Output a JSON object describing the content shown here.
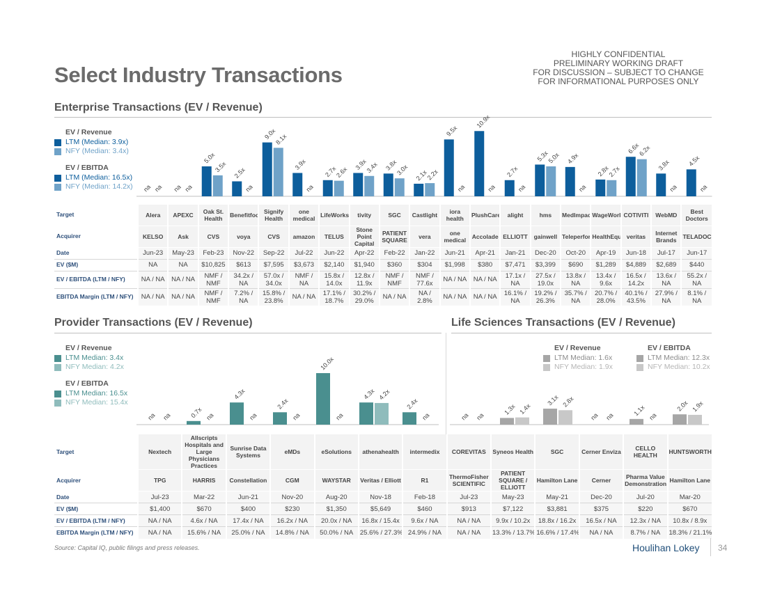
{
  "page": {
    "title": "Select Industry Transactions",
    "confidential": [
      "HIGHLY CONFIDENTIAL",
      "PRELIMINARY WORKING DRAFT",
      "FOR DISCUSSION – SUBJECT TO CHANGE",
      "FOR INFORMATIONAL PURPOSES ONLY"
    ],
    "source": "Source: Capital IQ, public filings and press releases.",
    "brand": "Houlihan Lokey",
    "page_number": "34"
  },
  "colors": {
    "ltm": "#0d5e9c",
    "nfy": "#6fa2c8",
    "prov_ltm": "#4a8f8f",
    "prov_nfy": "#8fbcbc",
    "ls": "#a6a6a6",
    "ls_nfy": "#c8c8c8"
  },
  "row_labels": {
    "target": "Target",
    "acquirer": "Acquirer",
    "date": "Date",
    "ev": "EV ($M)",
    "ev_ebitda": "EV / EBITDA (LTM / NFY)",
    "margin": "EBITDA Margin (LTM / NFY)"
  },
  "enterprise": {
    "title": "Enterprise Transactions (EV / Revenue)",
    "legend": {
      "rev_head": "EV / Revenue",
      "rev_ltm": "LTM (Median: 3.9x)",
      "rev_nfy": "NFY (Median: 3.4x)",
      "ebitda_head": "EV / EBITDA",
      "ebitda_ltm": "LTM (Median: 16.5x)",
      "ebitda_nfy": "NFY (Median: 14.2x)"
    },
    "targets": [
      "Alera",
      "APEXC",
      "Oak St. Health",
      "Benefitfocus",
      "Signify Health",
      "one medical",
      "LifeWorks",
      "tivity",
      "SGC",
      "Castlight",
      "iora health",
      "PlushCare",
      "alight",
      "hms",
      "MedImpact",
      "WageWorks",
      "COTIVITI",
      "WebMD",
      "Best Doctors"
    ],
    "acquirers": [
      "KELSO",
      "Ask",
      "CVS",
      "voya",
      "CVS",
      "amazon",
      "TELUS",
      "Stone Point Capital",
      "PATIENT SQUARE",
      "vera",
      "one medical",
      "Accolade",
      "ELLIOTT",
      "gainwell",
      "Teleperformance",
      "HealthEquity",
      "veritas",
      "Internet Brands",
      "TELADOC"
    ],
    "dates": [
      "Jun-23",
      "May-23",
      "Feb-23",
      "Nov-22",
      "Sep-22",
      "Jul-22",
      "Jun-22",
      "Apr-22",
      "Feb-22",
      "Jan-22",
      "Jun-21",
      "Apr-21",
      "Jan-21",
      "Dec-20",
      "Oct-20",
      "Apr-19",
      "Jun-18",
      "Jul-17",
      "Jun-17"
    ],
    "ev": [
      "NA",
      "NA",
      "$10,825",
      "$613",
      "$7,595",
      "$3,673",
      "$2,140",
      "$1,940",
      "$360",
      "$304",
      "$1,998",
      "$380",
      "$7,471",
      "$3,399",
      "$690",
      "$1,289",
      "$4,889",
      "$2,689",
      "$440"
    ],
    "ev_ebitda": [
      "NA / NA",
      "NA / NA",
      "NMF / NMF",
      "34.2x / NA",
      "57.0x / 34.0x",
      "NMF / NA",
      "15.8x / 14.0x",
      "12.8x / 11.9x",
      "NMF / NMF",
      "NMF / 77.6x",
      "NA / NA",
      "NA / NA",
      "17.1x / NA",
      "27.5x / 19.0x",
      "13.8x / NA",
      "13.4x / 9.6x",
      "16.5x / 14.2x",
      "13.6x / NA",
      "55.2x / NA"
    ],
    "margin": [
      "NA / NA",
      "NA / NA",
      "NMF / NMF",
      "7.2% / NA",
      "15.8% / 23.8%",
      "NA / NA",
      "17.1% / 18.7%",
      "30.2% / 29.0%",
      "NA / NA",
      "NA / 2.8%",
      "NA / NA",
      "NA / NA",
      "16.1% / NA",
      "19.2% / 26.3%",
      "35.7% / NA",
      "20.7% / 28.0%",
      "40.1% / 43.5%",
      "27.9% / NA",
      "8.1% / NA"
    ]
  },
  "provider": {
    "title": "Provider Transactions (EV / Revenue)",
    "legend": {
      "rev_head": "EV / Revenue",
      "rev_ltm": "LTM Median: 3.4x",
      "rev_nfy": "NFY Median: 4.2x",
      "ebitda_head": "EV / EBITDA",
      "ebitda_ltm": "LTM Median: 16.5x",
      "ebitda_nfy": "NFY Median: 15.4x"
    },
    "targets": [
      "Nextech",
      "Allscripts Hospitals and Large Physicians Practices",
      "Sunrise Data Systems",
      "eMDs",
      "eSolutions",
      "athenahealth",
      "intermedix"
    ],
    "acquirers": [
      "TPG",
      "HARRIS",
      "Constellation",
      "CGM",
      "WAYSTAR",
      "Veritas / Elliott",
      "R1"
    ],
    "dates": [
      "Jul-23",
      "Mar-22",
      "Jun-21",
      "Nov-20",
      "Aug-20",
      "Nov-18",
      "Feb-18"
    ],
    "ev": [
      "$1,400",
      "$670",
      "$400",
      "$230",
      "$1,350",
      "$5,649",
      "$460"
    ],
    "ev_ebitda": [
      "NA / NA",
      "4.6x / NA",
      "17.4x / NA",
      "16.2x / NA",
      "20.0x / NA",
      "16.8x / 15.4x",
      "9.6x / NA"
    ],
    "margin": [
      "NA / NA",
      "15.6% / NA",
      "25.0% / NA",
      "14.8% / NA",
      "50.0% / NA",
      "25.6% / 27.3%",
      "24.9% / NA"
    ]
  },
  "life_sciences": {
    "title": "Life Sciences Transactions (EV / Revenue)",
    "legend": {
      "rev_head": "EV / Revenue",
      "rev_ltm": "LTM Median: 1.6x",
      "rev_nfy": "NFY Median: 1.9x",
      "ebitda_head": "EV / EBITDA",
      "ebitda_ltm": "LTM Median: 12.3x",
      "ebitda_nfy": "NFY Median: 10.2x"
    },
    "targets": [
      "COREVITAS",
      "Syneos Health",
      "SGC",
      "Cerner Enviza",
      "CELLO HEALTH",
      "HUNTSWORTH"
    ],
    "acquirers": [
      "ThermoFisher SCIENTIFIC",
      "PATIENT SQUARE / ELLIOTT",
      "Hamilton Lane",
      "Cerner",
      "Pharma Value Demonstration",
      "Hamilton Lane"
    ],
    "dates": [
      "Jul-23",
      "May-23",
      "May-21",
      "Dec-20",
      "Jul-20",
      "Mar-20"
    ],
    "ev": [
      "$913",
      "$7,122",
      "$3,881",
      "$375",
      "$220",
      "$670"
    ],
    "ev_ebitda": [
      "NA / NA",
      "9.9x / 10.2x",
      "18.8x / 16.2x",
      "16.5x / NA",
      "12.3x / NA",
      "10.8x / 8.9x"
    ],
    "margin": [
      "NA / NA",
      "13.3% / 13.7%",
      "16.6% / 17.4%",
      "NA / NA",
      "8.7% / NA",
      "18.3% / 21.1%"
    ]
  },
  "chart_data": [
    {
      "type": "bar",
      "title": "Enterprise Transactions (EV / Revenue)",
      "categories": [
        "Jun-23",
        "May-23",
        "Feb-23",
        "Nov-22",
        "Sep-22",
        "Jul-22",
        "Jun-22",
        "Apr-22",
        "Feb-22",
        "Jan-22",
        "Jun-21",
        "Apr-21",
        "Jan-21",
        "Dec-20",
        "Oct-20",
        "Apr-19",
        "Jun-18",
        "Jul-17",
        "Jun-17"
      ],
      "series": [
        {
          "name": "LTM",
          "values": [
            null,
            null,
            5.0,
            2.5,
            9.0,
            3.9,
            2.7,
            3.9,
            3.8,
            2.1,
            9.5,
            10.9,
            2.7,
            5.3,
            4.9,
            2.8,
            6.6,
            3.8,
            4.5
          ]
        },
        {
          "name": "NFY",
          "values": [
            null,
            null,
            3.5,
            null,
            8.1,
            null,
            2.6,
            3.4,
            3.0,
            2.2,
            null,
            null,
            null,
            5.0,
            null,
            2.7,
            6.2,
            null,
            null
          ]
        }
      ],
      "ylim": [
        0,
        11
      ]
    },
    {
      "type": "bar",
      "title": "Provider Transactions (EV / Revenue)",
      "categories": [
        "Jul-23",
        "Mar-22",
        "Jun-21",
        "Nov-20",
        "Aug-20",
        "Nov-18",
        "Feb-18"
      ],
      "series": [
        {
          "name": "LTM",
          "values": [
            null,
            0.7,
            4.3,
            2.4,
            10.0,
            4.3,
            2.4
          ]
        },
        {
          "name": "NFY",
          "values": [
            null,
            null,
            null,
            null,
            null,
            4.2,
            null
          ]
        }
      ],
      "ylim": [
        0,
        11
      ]
    },
    {
      "type": "bar",
      "title": "Life Sciences Transactions (EV / Revenue)",
      "categories": [
        "Jul-23",
        "May-23",
        "May-21",
        "Dec-20",
        "Jul-20",
        "Mar-20"
      ],
      "series": [
        {
          "name": "LTM",
          "values": [
            null,
            1.3,
            3.1,
            null,
            1.1,
            2.0
          ]
        },
        {
          "name": "NFY",
          "values": [
            null,
            1.4,
            2.8,
            null,
            null,
            1.9
          ]
        }
      ],
      "ylim": [
        0,
        11
      ]
    }
  ]
}
